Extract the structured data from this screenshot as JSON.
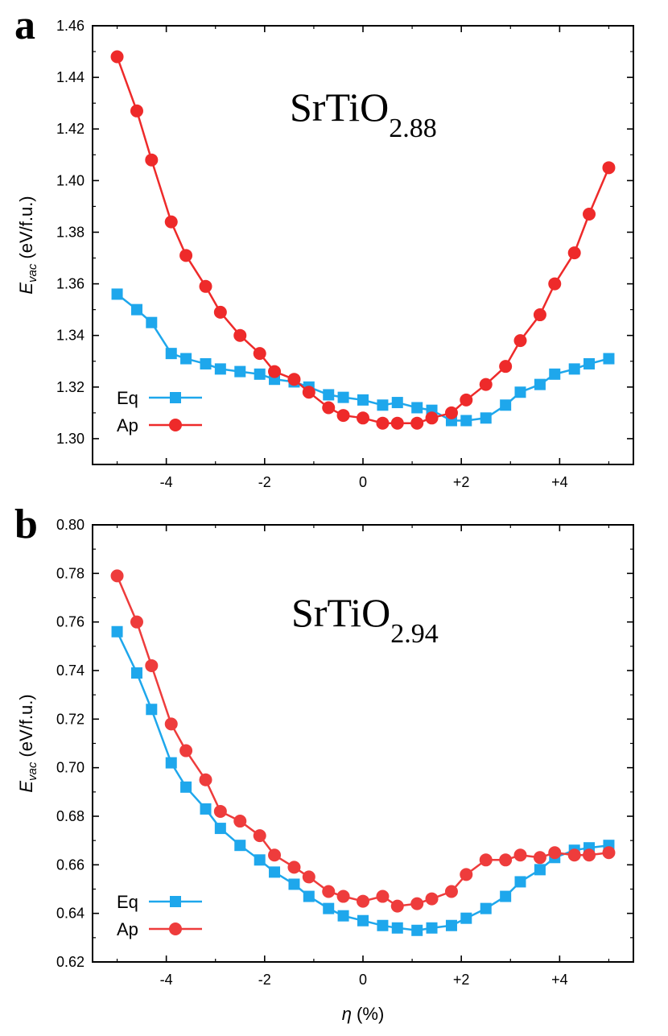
{
  "chart_data": [
    {
      "panel": "a",
      "type": "line",
      "title": "SrTiO",
      "title_subscript": "2.88",
      "xlabel": "",
      "ylabel": "E",
      "ylabel_subscript": "vac",
      "ylabel_units": "(eV/f.u.)",
      "xlim": [
        -5.5,
        5.5
      ],
      "ylim": [
        1.29,
        1.46
      ],
      "xticks": [
        -4,
        -2,
        0,
        2,
        4
      ],
      "xtick_labels": [
        "-4",
        "-2",
        "0",
        "+2",
        "+4"
      ],
      "yticks": [
        1.3,
        1.32,
        1.34,
        1.36,
        1.38,
        1.4,
        1.42,
        1.44,
        1.46
      ],
      "ytick_labels": [
        "1.30",
        "1.32",
        "1.34",
        "1.36",
        "1.38",
        "1.40",
        "1.42",
        "1.44",
        "1.46"
      ],
      "legend_position": "bottom-left",
      "x": [
        -5.0,
        -4.6,
        -4.3,
        -3.9,
        -3.6,
        -3.2,
        -2.9,
        -2.5,
        -2.1,
        -1.8,
        -1.4,
        -1.1,
        -0.7,
        -0.4,
        0.0,
        0.4,
        0.7,
        1.1,
        1.4,
        1.8,
        2.1,
        2.5,
        2.9,
        3.2,
        3.6,
        3.9,
        4.3,
        4.6,
        5.0
      ],
      "series": [
        {
          "name": "Eq",
          "color": "#1ea7ec",
          "marker": "square",
          "values": [
            1.356,
            1.35,
            1.345,
            1.333,
            1.331,
            1.329,
            1.327,
            1.326,
            1.325,
            1.323,
            1.322,
            1.32,
            1.317,
            1.316,
            1.315,
            1.313,
            1.314,
            1.312,
            1.311,
            1.307,
            1.307,
            1.308,
            1.313,
            1.318,
            1.321,
            1.325,
            1.327,
            1.329,
            1.331
          ]
        },
        {
          "name": "Ap",
          "color": "#ee2a2a",
          "marker": "circle",
          "values": [
            1.448,
            1.427,
            1.408,
            1.384,
            1.371,
            1.359,
            1.349,
            1.34,
            1.333,
            1.326,
            1.323,
            1.318,
            1.312,
            1.309,
            1.308,
            1.306,
            1.306,
            1.306,
            1.308,
            1.31,
            1.315,
            1.321,
            1.328,
            1.338,
            1.348,
            1.36,
            1.372,
            1.387,
            1.405
          ]
        }
      ]
    },
    {
      "panel": "b",
      "type": "line",
      "title": "SrTiO",
      "title_subscript": "2.94",
      "xlabel": "η (%)",
      "ylabel": "E",
      "ylabel_subscript": "vac",
      "ylabel_units": "(eV/f.u.)",
      "xlim": [
        -5.5,
        5.5
      ],
      "ylim": [
        0.62,
        0.8
      ],
      "xticks": [
        -4,
        -2,
        0,
        2,
        4
      ],
      "xtick_labels": [
        "-4",
        "-2",
        "0",
        "+2",
        "+4"
      ],
      "yticks": [
        0.62,
        0.64,
        0.66,
        0.68,
        0.7,
        0.72,
        0.74,
        0.76,
        0.78,
        0.8
      ],
      "ytick_labels": [
        "0.62",
        "0.64",
        "0.66",
        "0.68",
        "0.70",
        "0.72",
        "0.74",
        "0.76",
        "0.78",
        "0.80"
      ],
      "legend_position": "bottom-left",
      "x": [
        -5.0,
        -4.6,
        -4.3,
        -3.9,
        -3.6,
        -3.2,
        -2.9,
        -2.5,
        -2.1,
        -1.8,
        -1.4,
        -1.1,
        -0.7,
        -0.4,
        0.0,
        0.4,
        0.7,
        1.1,
        1.4,
        1.8,
        2.1,
        2.5,
        2.9,
        3.2,
        3.6,
        3.9,
        4.3,
        4.6,
        5.0
      ],
      "series": [
        {
          "name": "Eq",
          "color": "#1ea7ec",
          "marker": "square",
          "values": [
            0.756,
            0.739,
            0.724,
            0.702,
            0.692,
            0.683,
            0.675,
            0.668,
            0.662,
            0.657,
            0.652,
            0.647,
            0.642,
            0.639,
            0.637,
            0.635,
            0.634,
            0.633,
            0.634,
            0.635,
            0.638,
            0.642,
            0.647,
            0.653,
            0.658,
            0.663,
            0.666,
            0.667,
            0.668
          ]
        },
        {
          "name": "Ap",
          "color": "#ee3c3c",
          "marker": "circle",
          "values": [
            0.779,
            0.76,
            0.742,
            0.718,
            0.707,
            0.695,
            0.682,
            0.678,
            0.672,
            0.664,
            0.659,
            0.655,
            0.649,
            0.647,
            0.645,
            0.647,
            0.643,
            0.644,
            0.646,
            0.649,
            0.656,
            0.662,
            0.662,
            0.664,
            0.663,
            0.665,
            0.664,
            0.664,
            0.665
          ]
        }
      ]
    }
  ]
}
